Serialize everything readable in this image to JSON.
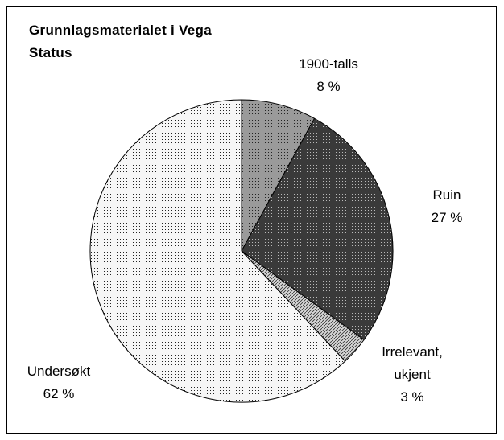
{
  "chart_data": {
    "type": "pie",
    "title": "Grunnlagsmaterialet i Vega",
    "subtitle": "Status",
    "categories": [
      "1900-talls",
      "Ruin",
      "Irrelevant, ukjent",
      "Undersøkt"
    ],
    "values": [
      8,
      27,
      3,
      62
    ],
    "value_labels": [
      "8 %",
      "27 %",
      "3 %",
      "62 %"
    ],
    "colors": [
      "#9a9a9a",
      "#3a3a3a",
      "#d6d6d6",
      "#f6f6f6"
    ]
  }
}
